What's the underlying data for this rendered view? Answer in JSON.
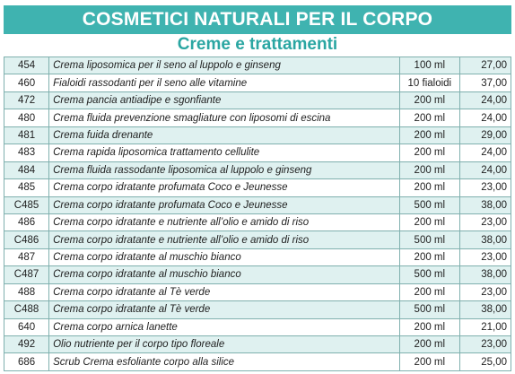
{
  "header": {
    "title": "COSMETICI NATURALI PER IL CORPO",
    "subtitle": "Creme e trattamenti"
  },
  "colors": {
    "banner_bg": "#3fb3b0",
    "subtitle_text": "#2aa6a2",
    "row_stripe": "#dff1f0",
    "grid_line": "#7fb0ae"
  },
  "products": [
    {
      "code": "454",
      "name": "Crema liposomica per il seno al luppolo e ginseng",
      "size": "100 ml",
      "price": "27,00"
    },
    {
      "code": "460",
      "name": "Fialoidi rassodanti per il seno alle vitamine",
      "size": "10 fialoidi",
      "price": "37,00"
    },
    {
      "code": "472",
      "name": "Crema pancia antiadipe e sgonfiante",
      "size": "200 ml",
      "price": "24,00"
    },
    {
      "code": "480",
      "name": "Crema fluida prevenzione smagliature con liposomi di escina",
      "size": "200 ml",
      "price": "24,00"
    },
    {
      "code": "481",
      "name": "Crema fuida drenante",
      "size": "200 ml",
      "price": "29,00"
    },
    {
      "code": "483",
      "name": "Crema rapida liposomica trattamento cellulite",
      "size": "200 ml",
      "price": "24,00"
    },
    {
      "code": "484",
      "name": "Crema fluida rassodante liposomica al luppolo e ginseng",
      "size": "200 ml",
      "price": "24,00"
    },
    {
      "code": "485",
      "name": "Crema corpo idratante profumata Coco e Jeunesse",
      "size": "200 ml",
      "price": "23,00"
    },
    {
      "code": "C485",
      "name": "Crema corpo idratante profumata Coco e Jeunesse",
      "size": "500 ml",
      "price": "38,00"
    },
    {
      "code": "486",
      "name": "Crema corpo idratante e nutriente all’olio e amido di riso",
      "size": "200 ml",
      "price": "23,00"
    },
    {
      "code": "C486",
      "name": "Crema corpo idratante e nutriente all’olio e amido di riso",
      "size": "500 ml",
      "price": "38,00"
    },
    {
      "code": "487",
      "name": "Crema corpo idratante al muschio bianco",
      "size": "200 ml",
      "price": "23,00"
    },
    {
      "code": "C487",
      "name": "Crema corpo idratante al muschio bianco",
      "size": "500 ml",
      "price": "38,00"
    },
    {
      "code": "488",
      "name": "Crema corpo idratante al Tè verde",
      "size": "200 ml",
      "price": "23,00"
    },
    {
      "code": "C488",
      "name": "Crema corpo idratante al Tè verde",
      "size": "500 ml",
      "price": "38,00"
    },
    {
      "code": "640",
      "name": "Crema corpo arnica lanette",
      "size": "200 ml",
      "price": "21,00"
    },
    {
      "code": "492",
      "name": "Olio nutriente per il corpo tipo floreale",
      "size": "200 ml",
      "price": "23,00"
    },
    {
      "code": "686",
      "name": "Scrub Crema esfoliante corpo alla silice",
      "size": "200 ml",
      "price": "25,00"
    }
  ]
}
